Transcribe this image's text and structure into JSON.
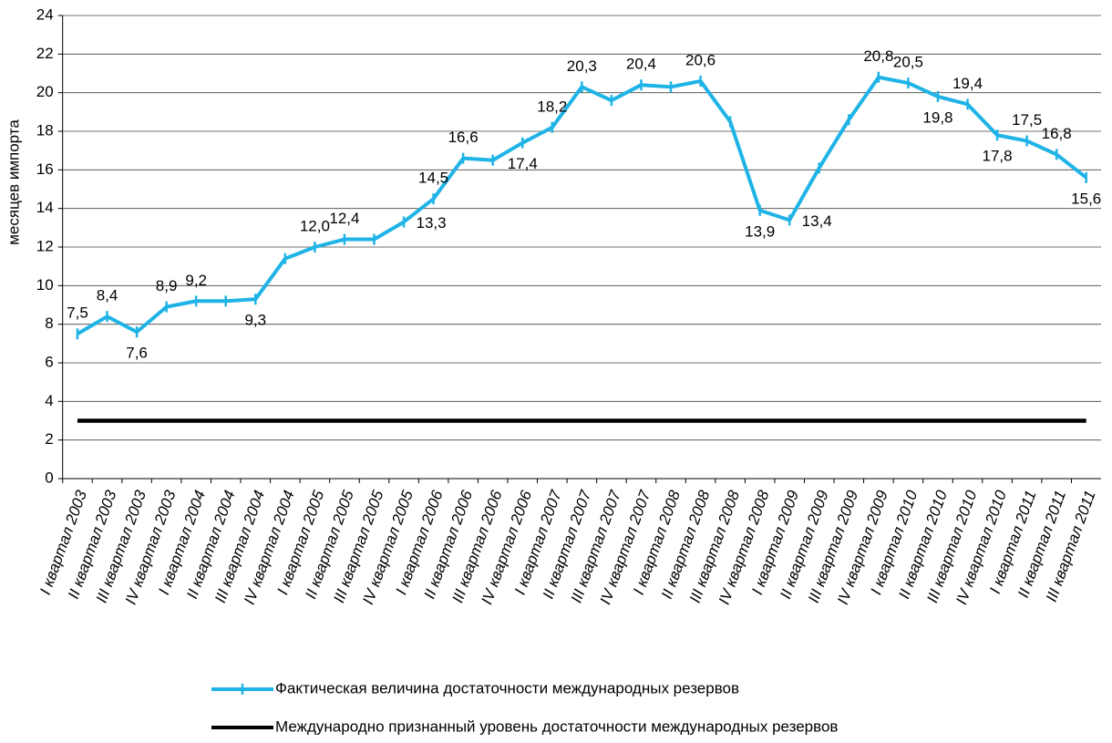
{
  "chart_data": {
    "type": "line",
    "y_label": "месяцев импорта",
    "categories": [
      "I квартал 2003",
      "II квартал 2003",
      "III квартал 2003",
      "IV квартал 2003",
      "I квартал 2004",
      "II квартал 2004",
      "III квартал 2004",
      "IV квартал 2004",
      "I квартал 2005",
      "II квартал 2005",
      "III квартал 2005",
      "IV квартал 2005",
      "I квартал 2006",
      "II квартал 2006",
      "III квартал 2006",
      "IV квартал 2006",
      "I квартал 2007",
      "II квартал 2007",
      "III квартал 2007",
      "IV квартал 2007",
      "I квартал 2008",
      "II квартал 2008",
      "III квартал 2008",
      "IV квартал 2008",
      "I квартал 2009",
      "II квартал 2009",
      "III квартал 2009",
      "IV квартал 2009",
      "I квартал 2010",
      "II квартал 2010",
      "III квартал 2010",
      "IV квартал 2010",
      "I квартал 2011",
      "II квартал 2011",
      "III квартал 2011"
    ],
    "series": [
      {
        "name": "Фактическая величина достаточности международных резервов",
        "color": "#1fb3e6",
        "values": [
          7.5,
          8.4,
          7.6,
          8.9,
          9.2,
          9.2,
          9.3,
          11.4,
          12.0,
          12.4,
          12.4,
          13.3,
          14.5,
          16.6,
          16.5,
          17.4,
          18.2,
          20.3,
          19.6,
          20.4,
          20.3,
          20.6,
          18.5,
          13.9,
          13.4,
          16.1,
          18.6,
          20.8,
          20.5,
          19.8,
          19.4,
          17.8,
          17.5,
          16.8,
          15.6
        ],
        "value_labels": [
          "7,5",
          "8,4",
          "7,6",
          "8,9",
          "9,2",
          null,
          "9,3",
          null,
          "12,0",
          "12,4",
          null,
          "13,3",
          "14,5",
          "16,6",
          null,
          "17,4",
          "18,2",
          "20,3",
          null,
          "20,4",
          null,
          "20,6",
          null,
          "13,9",
          "13,4",
          null,
          null,
          "20,8",
          "20,5",
          "19,8",
          "19,4",
          "17,8",
          "17,5",
          "16,8",
          "15,6"
        ]
      },
      {
        "name": "Международно признанный уровень достаточности международных резервов",
        "color": "#000000",
        "values": [
          3,
          3,
          3,
          3,
          3,
          3,
          3,
          3,
          3,
          3,
          3,
          3,
          3,
          3,
          3,
          3,
          3,
          3,
          3,
          3,
          3,
          3,
          3,
          3,
          3,
          3,
          3,
          3,
          3,
          3,
          3,
          3,
          3,
          3,
          3
        ]
      }
    ],
    "ylim": [
      0,
      24
    ],
    "yticks": [
      0,
      2,
      4,
      6,
      8,
      10,
      12,
      14,
      16,
      18,
      20,
      22,
      24
    ],
    "grid": true
  }
}
